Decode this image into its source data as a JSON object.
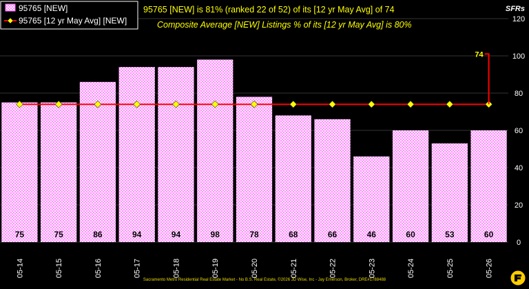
{
  "chart_data": {
    "type": "bar",
    "categories": [
      "05-14",
      "05-15",
      "05-16",
      "05-17",
      "05-18",
      "05-19",
      "05-20",
      "05-21",
      "05-22",
      "05-23",
      "05-24",
      "05-25",
      "05-26"
    ],
    "series": [
      {
        "name": "95765 [NEW]",
        "type": "bar",
        "values": [
          75,
          75,
          86,
          94,
          94,
          98,
          78,
          68,
          66,
          46,
          60,
          53,
          60
        ]
      },
      {
        "name": "95765 [12 yr May Avg] [NEW]",
        "type": "line",
        "values": [
          74,
          74,
          74,
          74,
          74,
          74,
          74,
          74,
          74,
          74,
          74,
          74,
          74
        ]
      }
    ],
    "bar_labels": [
      "75",
      "75",
      "86",
      "94",
      "94",
      "98",
      "78",
      "68",
      "66",
      "46",
      "60",
      "53",
      "60"
    ],
    "annotation": {
      "label": "74",
      "from_value": 101,
      "to_value": 74,
      "category": "05-26"
    },
    "title_line1": "95765 [NEW] is 81% (ranked 22 of 52)  of its [12 yr May Avg] of 74",
    "title_line2": "Composite Average [NEW] Listings % of its [12 yr May Avg] is 80%",
    "ylabel": "SFRs",
    "ylim": [
      0,
      120
    ],
    "yticks": [
      "0",
      "20",
      "40",
      "60",
      "80",
      "100",
      "120"
    ],
    "grid": true,
    "legend_position": "top-left",
    "colors": {
      "background": "#000000",
      "bar_fill": "#ffffff",
      "bar_hatch": "#ff6cff",
      "avg_line": "#ff0000",
      "avg_marker": "#ffff00",
      "title_text": "#ffff00",
      "axis_text": "#ffffff",
      "footer_text": "#e8d800"
    }
  },
  "footer": "Sacramento Metro Residential Real Estate Market - No B.S. Real Estate, ©2026 JD Wise, Inc - Jay Emerson, Broker, DRE#1788488",
  "logo_icon": "no-bs-logo-icon"
}
